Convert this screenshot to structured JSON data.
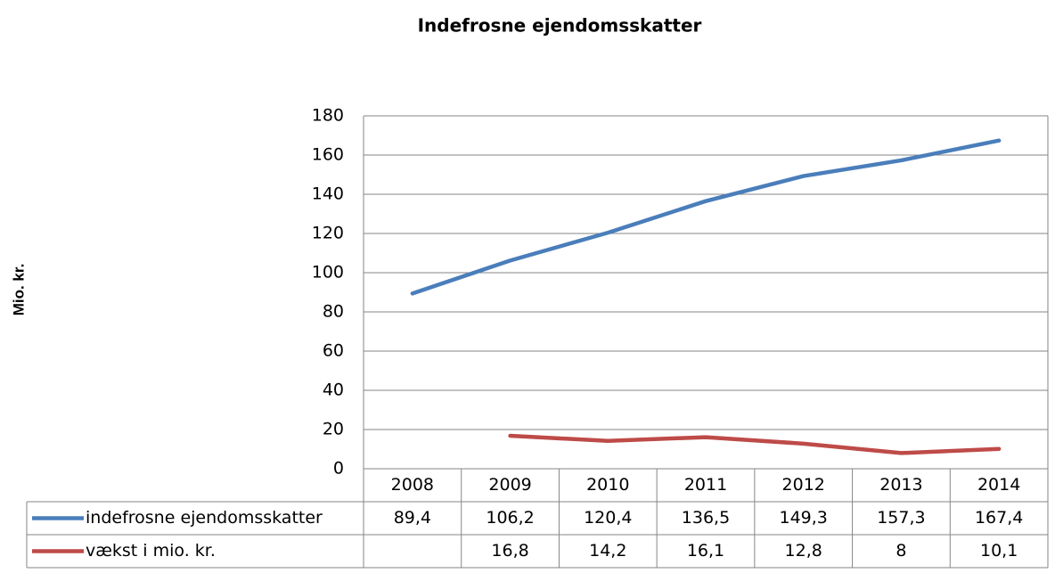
{
  "chart_data": {
    "type": "line",
    "title": "Indefrosne ejendomsskatter",
    "y_label": "Mio. kr.",
    "categories": [
      "2008",
      "2009",
      "2010",
      "2011",
      "2012",
      "2013",
      "2014"
    ],
    "series": [
      {
        "name": "indefrosne ejendomsskatter",
        "color": "#4a7ebb",
        "values": [
          89.4,
          106.2,
          120.4,
          136.5,
          149.3,
          157.3,
          167.4
        ],
        "value_labels": [
          "89,4",
          "106,2",
          "120,4",
          "136,5",
          "149,3",
          "157,3",
          "167,4"
        ]
      },
      {
        "name": "vækst i mio. kr.",
        "color": "#be4b48",
        "values": [
          null,
          16.8,
          14.2,
          16.1,
          12.8,
          8,
          10.1
        ],
        "value_labels": [
          null,
          "16,8",
          "14,2",
          "16,1",
          "12,8",
          "8",
          "10,1"
        ]
      }
    ],
    "ylim": [
      0,
      180
    ],
    "yticks": [
      0,
      20,
      40,
      60,
      80,
      100,
      120,
      140,
      160,
      180
    ],
    "grid": true
  }
}
